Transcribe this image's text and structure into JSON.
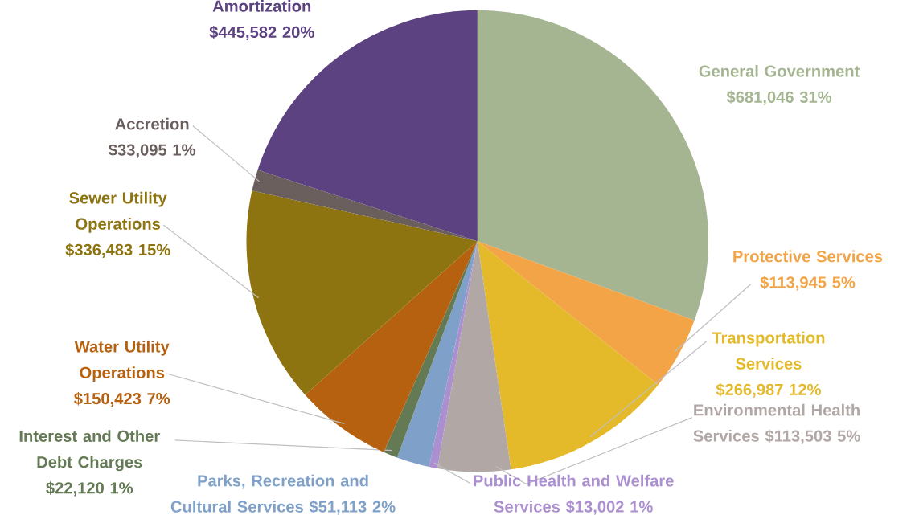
{
  "chart_data": {
    "type": "pie",
    "categories": [
      "General Government",
      "Protective Services",
      "Transportation Services",
      "Environmental Health Services",
      "Public Health and Welfare Services",
      "Parks, Recreation and Cultural Services",
      "Interest and Other Debt Charges",
      "Water Utility Operations",
      "Sewer Utility Operations",
      "Accretion",
      "Amortization"
    ],
    "values": [
      681046,
      113945,
      266987,
      113503,
      13002,
      51113,
      22120,
      150423,
      336483,
      33095,
      445582
    ],
    "value_labels": [
      "$681,046  31%",
      "$113,945  5%",
      "$266,987  12%",
      "$113,503  5%",
      "$13,002  1%",
      "$51,113  2%",
      "$22,120  1%",
      "$150,423  7%",
      "$336,483  15%",
      "$33,095  1%",
      "$445,582  20%"
    ],
    "colors": [
      "#a5b592",
      "#f3a447",
      "#e4b92a",
      "#b1a8a6",
      "#ab8fd0",
      "#7fa1c9",
      "#647a55",
      "#b5610f",
      "#8e7411",
      "#6b5f5e",
      "#5c4280"
    ]
  }
}
